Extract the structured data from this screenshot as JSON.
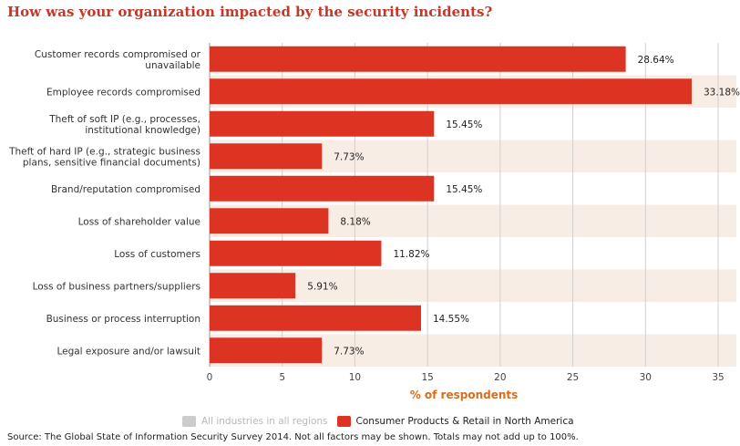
{
  "title": "How was your organization impacted by the security incidents?",
  "colors": {
    "bar": "#dd3322",
    "band": "#f8ede4",
    "grid": "#d0d0d0",
    "axis_label": "#d86d1c",
    "legend_inactive": "#cccccc"
  },
  "chart_data": {
    "type": "bar",
    "orientation": "horizontal",
    "categories": [
      "Customer records compromised or unavailable",
      "Employee records compromised",
      "Theft of soft IP (e.g., processes, institutional knowledge)",
      "Theft of hard IP (e.g., strategic business plans, sensitive financial documents)",
      "Brand/reputation compromised",
      "Loss of shareholder value",
      "Loss of customers",
      "Loss of business partners/suppliers",
      "Business or process interruption",
      "Legal exposure and/or lawsuit"
    ],
    "category_lines": [
      [
        "Customer records compromised or",
        "unavailable"
      ],
      [
        "Employee records compromised"
      ],
      [
        "Theft of soft IP (e.g., processes,",
        "institutional knowledge)"
      ],
      [
        "Theft of hard IP (e.g., strategic business",
        "plans, sensitive financial documents)"
      ],
      [
        "Brand/reputation compromised"
      ],
      [
        "Loss of shareholder value"
      ],
      [
        "Loss of customers"
      ],
      [
        "Loss of business partners/suppliers"
      ],
      [
        "Business or process interruption"
      ],
      [
        "Legal exposure and/or lawsuit"
      ]
    ],
    "series": [
      {
        "name": "Consumer Products & Retail in North America",
        "values": [
          28.64,
          33.18,
          15.45,
          7.73,
          15.45,
          8.18,
          11.82,
          5.91,
          14.55,
          7.73
        ]
      }
    ],
    "data_labels": [
      "28.64%",
      "33.18%",
      "15.45%",
      "7.73%",
      "15.45%",
      "8.18%",
      "11.82%",
      "5.91%",
      "14.55%",
      "7.73%"
    ],
    "xlim": [
      0,
      35
    ],
    "xticks": [
      0,
      5,
      10,
      15,
      20,
      25,
      30,
      35
    ],
    "xlabel": "% of respondents",
    "grid": true,
    "legend_position": "bottom"
  },
  "legend": {
    "inactive_label": "All industries in all regions",
    "active_label": "Consumer Products & Retail in North America"
  },
  "source": "Source: The Global State of Information Security Survey 2014. Not all factors may be shown. Totals may not add up to 100%."
}
